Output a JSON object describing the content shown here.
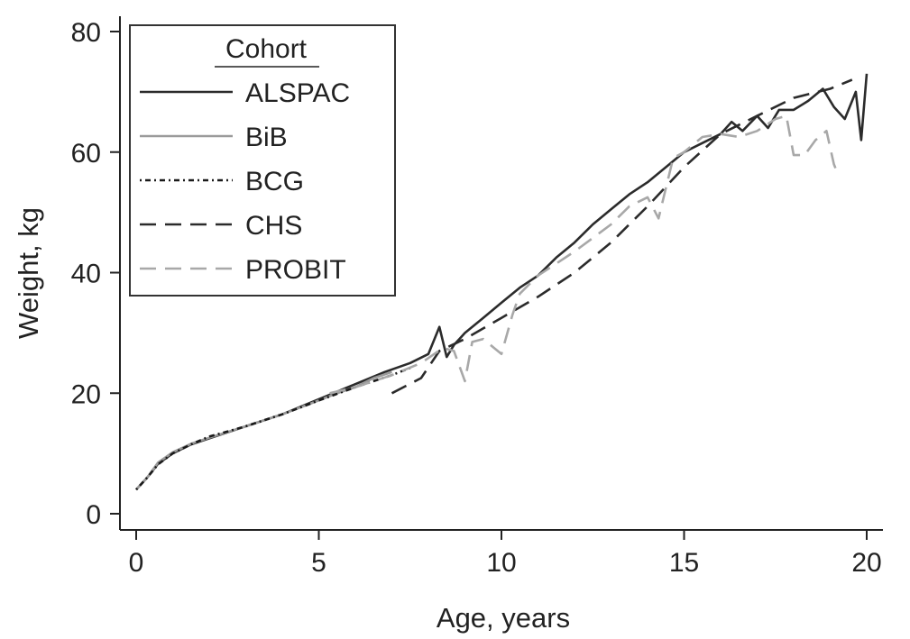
{
  "chart_data": {
    "type": "line",
    "xlabel": "Age, years",
    "ylabel": "Weight, kg",
    "xlim": [
      0,
      20
    ],
    "ylim": [
      0,
      80
    ],
    "xticks": [
      0,
      5,
      10,
      15,
      20
    ],
    "yticks": [
      0,
      20,
      40,
      60,
      80
    ],
    "grid": false,
    "legend": {
      "title": "Cohort",
      "position": "top-left"
    },
    "series": [
      {
        "name": "ALSPAC",
        "color": "#2b2b2b",
        "dash": "solid",
        "points": [
          [
            0,
            4
          ],
          [
            0.3,
            6
          ],
          [
            0.6,
            8.3
          ],
          [
            1,
            10
          ],
          [
            1.5,
            11.5
          ],
          [
            2,
            12.5
          ],
          [
            3,
            14.5
          ],
          [
            4,
            16.5
          ],
          [
            5,
            19
          ],
          [
            6,
            21.5
          ],
          [
            6.8,
            23.5
          ],
          [
            7.5,
            25
          ],
          [
            8,
            26.5
          ],
          [
            8.3,
            31
          ],
          [
            8.5,
            26
          ],
          [
            8.7,
            28
          ],
          [
            9,
            30
          ],
          [
            9.5,
            32.5
          ],
          [
            10,
            35
          ],
          [
            10.5,
            37.5
          ],
          [
            11,
            39.5
          ],
          [
            11.5,
            42.5
          ],
          [
            12,
            45
          ],
          [
            12.5,
            48
          ],
          [
            13,
            50.5
          ],
          [
            13.5,
            53
          ],
          [
            14,
            55
          ],
          [
            14.5,
            57.5
          ],
          [
            15,
            60
          ],
          [
            15.5,
            61.5
          ],
          [
            16,
            63
          ],
          [
            16.3,
            65
          ],
          [
            16.6,
            63.5
          ],
          [
            17,
            66
          ],
          [
            17.3,
            64
          ],
          [
            17.6,
            67
          ],
          [
            18,
            67
          ],
          [
            18.4,
            68.5
          ],
          [
            18.8,
            70.5
          ],
          [
            19.1,
            67.5
          ],
          [
            19.4,
            65.5
          ],
          [
            19.7,
            70
          ],
          [
            19.85,
            62
          ],
          [
            20,
            73
          ]
        ]
      },
      {
        "name": "BiB",
        "color": "#9a9a9a",
        "dash": "solid",
        "points": [
          [
            0,
            4
          ],
          [
            0.3,
            6
          ],
          [
            0.6,
            8.5
          ],
          [
            1,
            10.2
          ],
          [
            1.5,
            11.6
          ],
          [
            2,
            12.6
          ],
          [
            3,
            14.5
          ],
          [
            4,
            16.5
          ],
          [
            5,
            18.8
          ],
          [
            5.5,
            20
          ],
          [
            6,
            21
          ],
          [
            6.5,
            22.5
          ],
          [
            7,
            23.5
          ]
        ]
      },
      {
        "name": "BCG",
        "color": "#1a1a1a",
        "dash": "2,4,6,4",
        "points": [
          [
            0,
            4
          ],
          [
            0.3,
            6
          ],
          [
            0.6,
            8.2
          ],
          [
            1,
            10
          ],
          [
            1.5,
            11.5
          ],
          [
            2,
            12.8
          ],
          [
            3,
            14.5
          ],
          [
            4,
            16.5
          ],
          [
            5,
            18.8
          ],
          [
            6,
            21
          ],
          [
            7,
            23
          ],
          [
            7.5,
            24.2
          ]
        ]
      },
      {
        "name": "CHS",
        "color": "#2b2b2b",
        "dash": "18,10",
        "points": [
          [
            7,
            20
          ],
          [
            7.8,
            22.5
          ],
          [
            8.3,
            27
          ],
          [
            9,
            29
          ],
          [
            10,
            32.5
          ],
          [
            11,
            36
          ],
          [
            12,
            40
          ],
          [
            13,
            45
          ],
          [
            14,
            51
          ],
          [
            15,
            57.5
          ],
          [
            16,
            63
          ],
          [
            17,
            66
          ],
          [
            18,
            69
          ],
          [
            19,
            70.5
          ],
          [
            19.6,
            72
          ]
        ]
      },
      {
        "name": "PROBIT",
        "color": "#a8a8a8",
        "dash": "18,10",
        "points": [
          [
            5.3,
            20
          ],
          [
            6,
            21
          ],
          [
            7,
            23
          ],
          [
            7.8,
            25
          ],
          [
            8.4,
            27.5
          ],
          [
            8.7,
            27
          ],
          [
            9,
            22
          ],
          [
            9.2,
            28.5
          ],
          [
            9.5,
            29
          ],
          [
            9.8,
            27.5
          ],
          [
            10,
            26.5
          ],
          [
            10.3,
            33
          ],
          [
            10.5,
            36.5
          ],
          [
            11,
            39.5
          ],
          [
            12,
            43.5
          ],
          [
            13,
            48
          ],
          [
            13.5,
            51
          ],
          [
            14,
            52.5
          ],
          [
            14.3,
            49
          ],
          [
            14.7,
            59
          ],
          [
            15,
            60
          ],
          [
            15.5,
            62.5
          ],
          [
            16,
            63
          ],
          [
            16.5,
            62.5
          ],
          [
            17,
            63.5
          ],
          [
            17.5,
            65.5
          ],
          [
            17.8,
            66
          ],
          [
            18,
            59.5
          ],
          [
            18.3,
            59.5
          ],
          [
            18.6,
            62
          ],
          [
            18.9,
            63.5
          ],
          [
            19.1,
            58
          ],
          [
            19.2,
            56.5
          ]
        ]
      }
    ]
  }
}
